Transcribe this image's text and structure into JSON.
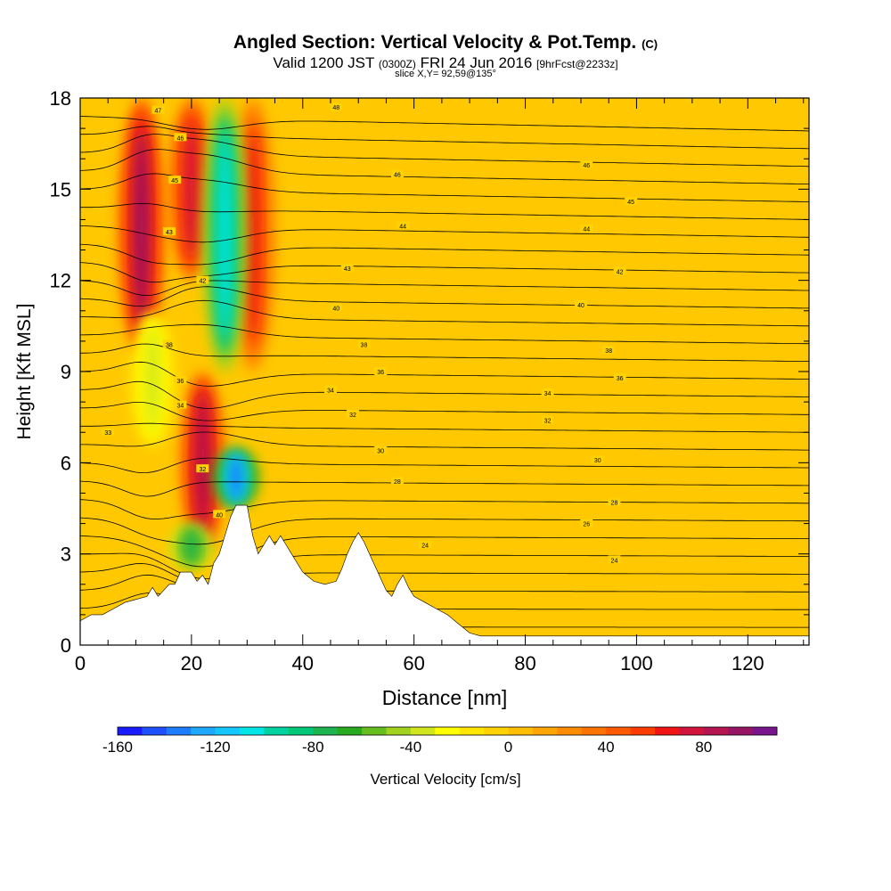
{
  "header": {
    "title": "Angled Section: Vertical Velocity & Pot.Temp.",
    "title_units": "(C)",
    "subtitle_main": "Valid 1200 JST",
    "subtitle_utc": "(0300Z)",
    "subtitle_date": "FRI 24 Jun 2016",
    "subtitle_fcst": "[9hrFcst@2233z]",
    "slice": "slice X,Y= 92,59@135°"
  },
  "chart_data": {
    "type": "heatmap",
    "xlabel": "Distance [nm]",
    "ylabel": "Height [Kft MSL]",
    "xlim": [
      0,
      131
    ],
    "ylim": [
      0,
      18
    ],
    "x_ticks": [
      0,
      20,
      40,
      60,
      80,
      100,
      120
    ],
    "y_ticks": [
      0,
      3,
      6,
      9,
      12,
      15,
      18
    ],
    "colorbar": {
      "label": "Vertical Velocity [cm/s]",
      "range": [
        -160,
        110
      ],
      "ticks": [
        -160,
        -120,
        -80,
        -40,
        0,
        40,
        80
      ],
      "colors": [
        "#1a1aff",
        "#1e50ff",
        "#1e7cff",
        "#1ea8ff",
        "#14c8ff",
        "#00e6e6",
        "#00d2a0",
        "#00c878",
        "#1eb450",
        "#28aa1e",
        "#64be1e",
        "#a0d21e",
        "#d2e61e",
        "#ffff00",
        "#ffe600",
        "#ffd200",
        "#ffbe00",
        "#ffa500",
        "#ff8c00",
        "#ff7300",
        "#ff5a00",
        "#ff3c00",
        "#f01414",
        "#d2143c",
        "#b41450",
        "#961464",
        "#78148c"
      ]
    },
    "background_color": "#ffc800",
    "terrain_heights_kft": [
      [
        0,
        0.8
      ],
      [
        2,
        1
      ],
      [
        4,
        1
      ],
      [
        6,
        1.2
      ],
      [
        8,
        1.4
      ],
      [
        10,
        1.5
      ],
      [
        12,
        1.6
      ],
      [
        13,
        1.9
      ],
      [
        14,
        1.6
      ],
      [
        15,
        1.8
      ],
      [
        16,
        2
      ],
      [
        17,
        2
      ],
      [
        18,
        2.4
      ],
      [
        20,
        2.4
      ],
      [
        21,
        2.1
      ],
      [
        22,
        2.3
      ],
      [
        23,
        2
      ],
      [
        24,
        2.7
      ],
      [
        25,
        3
      ],
      [
        26,
        3.6
      ],
      [
        27,
        4.2
      ],
      [
        28,
        4.6
      ],
      [
        30,
        4.6
      ],
      [
        31,
        3.6
      ],
      [
        32,
        3
      ],
      [
        33,
        3.3
      ],
      [
        34,
        3.6
      ],
      [
        35,
        3.3
      ],
      [
        36,
        3.6
      ],
      [
        37,
        3.3
      ],
      [
        38,
        3
      ],
      [
        39,
        2.7
      ],
      [
        40,
        2.4
      ],
      [
        42,
        2.1
      ],
      [
        44,
        2
      ],
      [
        46,
        2.1
      ],
      [
        47,
        2.5
      ],
      [
        48,
        3
      ],
      [
        49,
        3.4
      ],
      [
        50,
        3.7
      ],
      [
        51,
        3.4
      ],
      [
        52,
        3
      ],
      [
        53,
        2.6
      ],
      [
        54,
        2.2
      ],
      [
        55,
        1.8
      ],
      [
        56,
        1.6
      ],
      [
        57,
        2
      ],
      [
        58,
        2.3
      ],
      [
        59,
        1.9
      ],
      [
        60,
        1.6
      ],
      [
        62,
        1.4
      ],
      [
        64,
        1.2
      ],
      [
        66,
        1
      ],
      [
        68,
        0.7
      ],
      [
        70,
        0.4
      ],
      [
        72,
        0.3
      ],
      [
        80,
        0.3
      ],
      [
        100,
        0.3
      ],
      [
        131,
        0.3
      ]
    ],
    "updraft_cores": [
      {
        "x": 11,
        "y_top": 18,
        "y_bottom": 9.5,
        "value": 90
      },
      {
        "x": 20,
        "y_top": 18,
        "y_bottom": 12,
        "value": 70
      },
      {
        "x": 22,
        "y_top": 9,
        "y_bottom": 3,
        "value": 80
      },
      {
        "x": 31,
        "y_top": 18,
        "y_bottom": 9,
        "value": 60
      }
    ],
    "downdraft_cores": [
      {
        "x": 26,
        "y_top": 18,
        "y_bottom": 9,
        "value": -110
      },
      {
        "x": 28,
        "y_top": 6.5,
        "y_bottom": 4.5,
        "value": -140
      },
      {
        "x": 20,
        "y_top": 4,
        "y_bottom": 2.5,
        "value": -80
      },
      {
        "x": 13,
        "y_top": 11,
        "y_bottom": 6.5,
        "value": -40
      }
    ],
    "isentrope_labels": [
      {
        "text": "47",
        "x": 14,
        "y": 17.6
      },
      {
        "text": "48",
        "x": 46,
        "y": 17.7
      },
      {
        "text": "46",
        "x": 18,
        "y": 16.7
      },
      {
        "text": "46",
        "x": 57,
        "y": 15.5
      },
      {
        "text": "46",
        "x": 91,
        "y": 15.8
      },
      {
        "text": "45",
        "x": 17,
        "y": 15.3
      },
      {
        "text": "45",
        "x": 99,
        "y": 14.6
      },
      {
        "text": "44",
        "x": 58,
        "y": 13.8
      },
      {
        "text": "44",
        "x": 91,
        "y": 13.7
      },
      {
        "text": "43",
        "x": 16,
        "y": 13.6
      },
      {
        "text": "43",
        "x": 48,
        "y": 12.4
      },
      {
        "text": "42",
        "x": 97,
        "y": 12.3
      },
      {
        "text": "42",
        "x": 22,
        "y": 12
      },
      {
        "text": "40",
        "x": 46,
        "y": 11.1
      },
      {
        "text": "40",
        "x": 90,
        "y": 11.2
      },
      {
        "text": "38",
        "x": 16,
        "y": 9.9
      },
      {
        "text": "38",
        "x": 51,
        "y": 9.9
      },
      {
        "text": "38",
        "x": 95,
        "y": 9.7
      },
      {
        "text": "36",
        "x": 18,
        "y": 8.7
      },
      {
        "text": "36",
        "x": 54,
        "y": 9
      },
      {
        "text": "36",
        "x": 97,
        "y": 8.8
      },
      {
        "text": "34",
        "x": 18,
        "y": 7.9
      },
      {
        "text": "34",
        "x": 45,
        "y": 8.4
      },
      {
        "text": "34",
        "x": 84,
        "y": 8.3
      },
      {
        "text": "33",
        "x": 5,
        "y": 7
      },
      {
        "text": "32",
        "x": 49,
        "y": 7.6
      },
      {
        "text": "32",
        "x": 84,
        "y": 7.4
      },
      {
        "text": "30",
        "x": 54,
        "y": 6.4
      },
      {
        "text": "30",
        "x": 93,
        "y": 6.1
      },
      {
        "text": "32",
        "x": 22,
        "y": 5.8
      },
      {
        "text": "28",
        "x": 57,
        "y": 5.4
      },
      {
        "text": "28",
        "x": 96,
        "y": 4.7
      },
      {
        "text": "40",
        "x": 25,
        "y": 4.3
      },
      {
        "text": "26",
        "x": 91,
        "y": 4
      },
      {
        "text": "24",
        "x": 62,
        "y": 3.3
      },
      {
        "text": "24",
        "x": 96,
        "y": 2.8
      }
    ]
  }
}
